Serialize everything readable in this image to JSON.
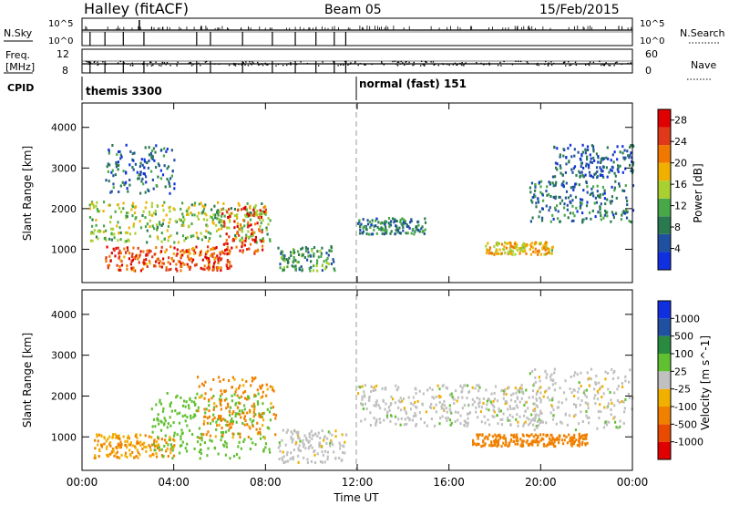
{
  "header": {
    "radar": "Halley (fitACF)",
    "beam": "Beam 05",
    "date": "15/Feb/2015"
  },
  "noise_panel": {
    "left_label": "N.Sky",
    "right_label": "N.Search",
    "left_ticks": [
      "10^5",
      "10^0"
    ],
    "right_ticks": [
      "10^5",
      "10^0"
    ]
  },
  "freq_panel": {
    "left_label_line1": "Freq.",
    "left_label_line2": "[MHz]",
    "right_label": "Nave",
    "left_ticks": [
      "12",
      "8"
    ],
    "right_ticks": [
      "60",
      "0"
    ]
  },
  "cpid": {
    "label": "CPID",
    "segments": [
      {
        "start_hour": 0,
        "name": "themis 3300"
      },
      {
        "start_hour": 12,
        "name": "normal (fast) 151"
      }
    ]
  },
  "colors": {
    "power": [
      "#1030e0",
      "#2050a0",
      "#2a7a50",
      "#48a848",
      "#a8d030",
      "#f0b000",
      "#f07800",
      "#e03818",
      "#e00000"
    ],
    "velocity": [
      "#e00000",
      "#e84a00",
      "#f08000",
      "#f0b000",
      "#c0c0c0",
      "#60c030",
      "#2a8a40",
      "#2050a0",
      "#1030e0"
    ]
  },
  "chart_data": [
    {
      "type": "heatmap",
      "title": "Power",
      "xlabel": "Time UT",
      "ylabel": "Slant Range [km]",
      "x_ticks": [
        "00:00",
        "04:00",
        "08:00",
        "12:00",
        "16:00",
        "20:00",
        "00:00"
      ],
      "xlim_hours": [
        0,
        24
      ],
      "ylim_km": [
        180,
        4600
      ],
      "y_ticks": [
        "1000",
        "2000",
        "3000",
        "4000"
      ],
      "y_tick_values": [
        1000,
        2000,
        3000,
        4000
      ],
      "colorbar": {
        "label": "Power [dB]",
        "ticks": [
          "4",
          "8",
          "12",
          "16",
          "20",
          "24",
          "28"
        ],
        "range": [
          0,
          30
        ]
      },
      "regions": [
        {
          "t": [
            0.3,
            8.2
          ],
          "r": [
            1200,
            2200
          ],
          "value": 14
        },
        {
          "t": [
            1.0,
            6.5
          ],
          "r": [
            500,
            1100
          ],
          "value": 24
        },
        {
          "t": [
            6.0,
            8.0
          ],
          "r": [
            900,
            2100
          ],
          "value": 26
        },
        {
          "t": [
            1.0,
            4.0
          ],
          "r": [
            2400,
            3600
          ],
          "value": 6
        },
        {
          "t": [
            8.5,
            11.0
          ],
          "r": [
            500,
            1100
          ],
          "value": 10
        },
        {
          "t": [
            12.0,
            15.0
          ],
          "r": [
            1400,
            1800
          ],
          "value": 8
        },
        {
          "t": [
            17.5,
            20.5
          ],
          "r": [
            900,
            1200
          ],
          "value": 18
        },
        {
          "t": [
            19.5,
            24.0
          ],
          "r": [
            1700,
            2700
          ],
          "value": 7
        },
        {
          "t": [
            20.5,
            24.0
          ],
          "r": [
            2800,
            3600
          ],
          "value": 5
        }
      ]
    },
    {
      "type": "heatmap",
      "title": "Velocity",
      "xlabel": "Time UT",
      "ylabel": "Slant Range [km]",
      "x_ticks": [
        "00:00",
        "04:00",
        "08:00",
        "12:00",
        "16:00",
        "20:00",
        "00:00"
      ],
      "xlim_hours": [
        0,
        24
      ],
      "ylim_km": [
        180,
        4600
      ],
      "y_ticks": [
        "1000",
        "2000",
        "3000",
        "4000"
      ],
      "y_tick_values": [
        1000,
        2000,
        3000,
        4000
      ],
      "colorbar": {
        "label": "Velocity [m s^-1]",
        "ticks": [
          "1000",
          "500",
          "100",
          "25",
          "-25",
          "-100",
          "-500",
          "-1000"
        ]
      },
      "regions": [
        {
          "t": [
            0.5,
            4.0
          ],
          "r": [
            500,
            1100
          ],
          "value": -100
        },
        {
          "t": [
            3.0,
            8.2
          ],
          "r": [
            500,
            2100
          ],
          "value": 60
        },
        {
          "t": [
            5.0,
            8.5
          ],
          "r": [
            1000,
            2500
          ],
          "value": -120
        },
        {
          "t": [
            8.5,
            11.5
          ],
          "r": [
            400,
            1200
          ],
          "value": 0
        },
        {
          "t": [
            12.0,
            20.0
          ],
          "r": [
            1300,
            2300
          ],
          "value": 0
        },
        {
          "t": [
            19.5,
            24.0
          ],
          "r": [
            1200,
            2700
          ],
          "value": 0
        },
        {
          "t": [
            17.0,
            22.0
          ],
          "r": [
            800,
            1100
          ],
          "value": -150
        }
      ]
    }
  ]
}
